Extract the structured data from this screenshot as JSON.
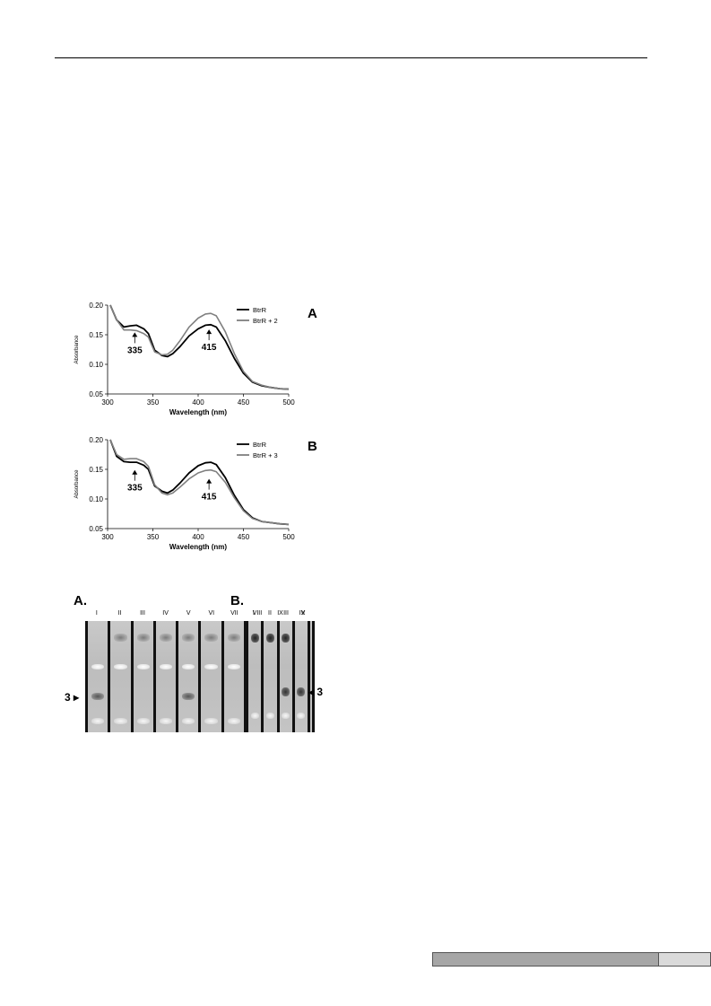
{
  "chart_data": [
    {
      "type": "line",
      "panel": "A",
      "xlabel": "Wavelength (nm)",
      "ylabel": "Absorbance",
      "xlim": [
        300,
        500
      ],
      "ylim": [
        0.05,
        0.2
      ],
      "xticks": [
        "300",
        "350",
        "400",
        "450",
        "500"
      ],
      "yticks": [
        "0.05",
        "0.10",
        "0.15",
        "0.20"
      ],
      "legend_position": "top-right",
      "annotations": [
        {
          "label": "335",
          "x": 330,
          "y": 0.16
        },
        {
          "label": "415",
          "x": 412,
          "y": 0.165
        }
      ],
      "series": [
        {
          "name": "BtrR",
          "color": "#000000",
          "x": [
            303,
            310,
            318,
            325,
            332,
            340,
            345,
            348,
            352,
            360,
            366,
            372,
            380,
            390,
            400,
            408,
            414,
            420,
            430,
            440,
            450,
            460,
            470,
            480,
            490,
            500
          ],
          "y": [
            0.2,
            0.175,
            0.163,
            0.165,
            0.166,
            0.16,
            0.152,
            0.14,
            0.124,
            0.115,
            0.113,
            0.118,
            0.13,
            0.148,
            0.16,
            0.166,
            0.167,
            0.163,
            0.14,
            0.11,
            0.085,
            0.07,
            0.064,
            0.061,
            0.059,
            0.058
          ]
        },
        {
          "name": "BtrR + 2",
          "color": "#808080",
          "x": [
            303,
            310,
            318,
            325,
            332,
            340,
            345,
            348,
            352,
            360,
            366,
            372,
            380,
            390,
            400,
            408,
            414,
            420,
            430,
            440,
            450,
            460,
            470,
            480,
            490,
            500
          ],
          "y": [
            0.2,
            0.175,
            0.158,
            0.158,
            0.157,
            0.152,
            0.146,
            0.135,
            0.121,
            0.116,
            0.117,
            0.124,
            0.14,
            0.163,
            0.178,
            0.185,
            0.186,
            0.182,
            0.155,
            0.118,
            0.088,
            0.071,
            0.065,
            0.061,
            0.059,
            0.058
          ]
        }
      ]
    },
    {
      "type": "line",
      "panel": "B",
      "xlabel": "Wavelength (nm)",
      "ylabel": "Absorbance",
      "xlim": [
        300,
        500
      ],
      "ylim": [
        0.05,
        0.2
      ],
      "xticks": [
        "300",
        "350",
        "400",
        "450",
        "500"
      ],
      "yticks": [
        "0.05",
        "0.10",
        "0.15",
        "0.20"
      ],
      "legend_position": "top-right",
      "annotations": [
        {
          "label": "335",
          "x": 330,
          "y": 0.155
        },
        {
          "label": "415",
          "x": 412,
          "y": 0.14
        }
      ],
      "series": [
        {
          "name": "BtrR",
          "color": "#000000",
          "x": [
            303,
            310,
            318,
            325,
            332,
            340,
            345,
            348,
            352,
            360,
            366,
            372,
            380,
            390,
            400,
            408,
            414,
            420,
            430,
            440,
            450,
            460,
            470,
            480,
            490,
            500
          ],
          "y": [
            0.2,
            0.172,
            0.163,
            0.162,
            0.162,
            0.157,
            0.15,
            0.138,
            0.122,
            0.113,
            0.11,
            0.115,
            0.127,
            0.144,
            0.156,
            0.161,
            0.162,
            0.158,
            0.136,
            0.106,
            0.082,
            0.068,
            0.062,
            0.06,
            0.058,
            0.057
          ]
        },
        {
          "name": "BtrR + 3",
          "color": "#808080",
          "x": [
            303,
            310,
            318,
            325,
            332,
            340,
            345,
            348,
            352,
            360,
            366,
            372,
            380,
            390,
            400,
            408,
            414,
            420,
            430,
            440,
            450,
            460,
            470,
            480,
            490,
            500
          ],
          "y": [
            0.2,
            0.175,
            0.167,
            0.168,
            0.168,
            0.163,
            0.155,
            0.142,
            0.124,
            0.11,
            0.107,
            0.11,
            0.12,
            0.134,
            0.144,
            0.148,
            0.149,
            0.146,
            0.128,
            0.102,
            0.08,
            0.067,
            0.062,
            0.06,
            0.058,
            0.057
          ]
        }
      ]
    }
  ],
  "gel_figure": {
    "panel_a": {
      "letter": "A.",
      "lanes": [
        "I",
        "II",
        "III",
        "IV",
        "V",
        "VI",
        "VII",
        "VIII",
        "IX",
        "X"
      ],
      "marker_label": "3"
    },
    "panel_b": {
      "letter": "B.",
      "lanes": [
        "I",
        "II",
        "III",
        "IV"
      ],
      "marker_label": "3"
    }
  },
  "colors": {
    "footer_bar": "#a6a6a6",
    "footer_tab": "#dadada"
  }
}
